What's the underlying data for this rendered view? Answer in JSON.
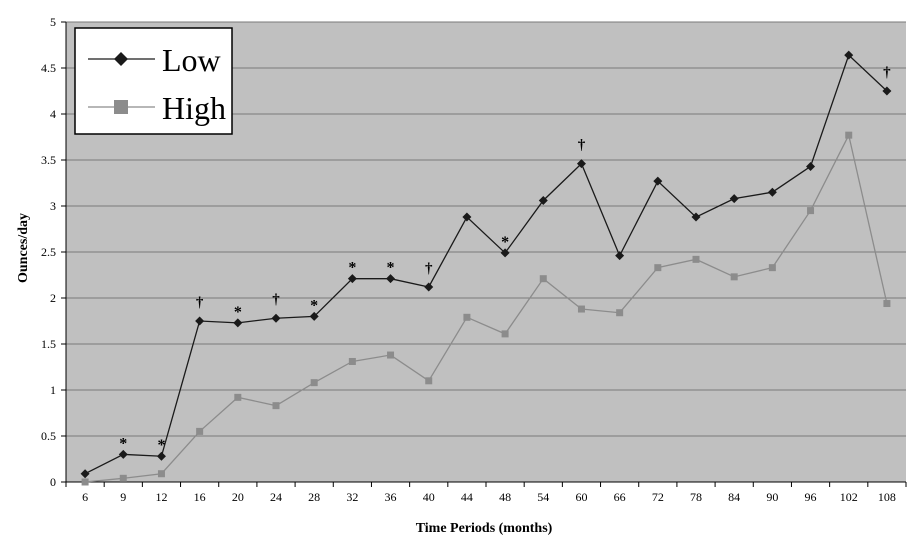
{
  "chart_data": {
    "type": "line",
    "title": "",
    "xlabel": "Time Periods (months)",
    "ylabel": "Ounces/day",
    "ylim": [
      0,
      5
    ],
    "yticks": [
      "0",
      "0.5",
      "1",
      "1.5",
      "2",
      "2.5",
      "3",
      "3.5",
      "4",
      "4.5",
      "5"
    ],
    "categories": [
      "6",
      "9",
      "12",
      "16",
      "20",
      "24",
      "28",
      "32",
      "36",
      "40",
      "44",
      "48",
      "54",
      "60",
      "66",
      "72",
      "78",
      "84",
      "90",
      "96",
      "102",
      "108"
    ],
    "grid": true,
    "legend_position": "top-left",
    "series": [
      {
        "name": "Low",
        "marker": "diamond",
        "color": "#1a1a1a",
        "values": [
          0.09,
          0.3,
          0.28,
          1.75,
          1.73,
          1.78,
          1.8,
          2.21,
          2.21,
          2.12,
          2.88,
          2.49,
          3.06,
          3.46,
          2.46,
          3.27,
          2.88,
          3.08,
          3.15,
          3.43,
          4.64,
          4.25
        ]
      },
      {
        "name": "High",
        "marker": "square",
        "color": "#8c8c8c",
        "values": [
          0.0,
          0.04,
          0.09,
          0.55,
          0.92,
          0.83,
          1.08,
          1.31,
          1.38,
          1.1,
          1.79,
          1.61,
          2.21,
          1.88,
          1.84,
          2.33,
          2.42,
          2.23,
          2.33,
          2.95,
          3.77,
          1.94
        ]
      }
    ],
    "annotations": [
      {
        "category": "9",
        "symbol": "*"
      },
      {
        "category": "12",
        "symbol": "*"
      },
      {
        "category": "16",
        "symbol": "†"
      },
      {
        "category": "20",
        "symbol": "*"
      },
      {
        "category": "24",
        "symbol": "†"
      },
      {
        "category": "28",
        "symbol": "*"
      },
      {
        "category": "32",
        "symbol": "*"
      },
      {
        "category": "36",
        "symbol": "*"
      },
      {
        "category": "40",
        "symbol": "†"
      },
      {
        "category": "48",
        "symbol": "*"
      },
      {
        "category": "60",
        "symbol": "†"
      },
      {
        "category": "108",
        "symbol": "†"
      }
    ],
    "colors": {
      "plot_background": "#c0c0c0",
      "gridline": "#7a7a7a",
      "low": "#1a1a1a",
      "high": "#8c8c8c"
    }
  }
}
